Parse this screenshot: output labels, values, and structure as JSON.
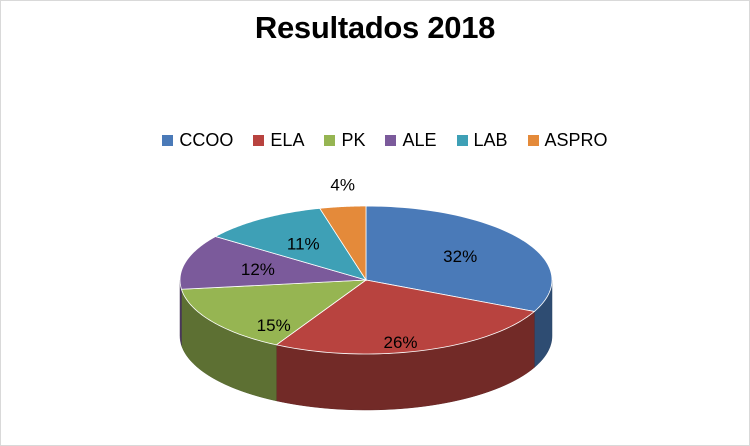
{
  "chart_data": {
    "type": "pie",
    "title": "Resultados 2018",
    "legend_position": "top",
    "three_d": true,
    "slices": [
      {
        "label": "CCOO",
        "value": 32,
        "display": "32%",
        "color": "#4a7ab8"
      },
      {
        "label": "ELA",
        "value": 26,
        "display": "26%",
        "color": "#b8433f"
      },
      {
        "label": "PK",
        "value": 15,
        "display": "15%",
        "color": "#96b552"
      },
      {
        "label": "ALE",
        "value": 12,
        "display": "12%",
        "color": "#7b5a9b"
      },
      {
        "label": "LAB",
        "value": 11,
        "display": "11%",
        "color": "#3ea0b6"
      },
      {
        "label": "ASPRO",
        "value": 4,
        "display": "4%",
        "color": "#e48a3a"
      }
    ]
  }
}
